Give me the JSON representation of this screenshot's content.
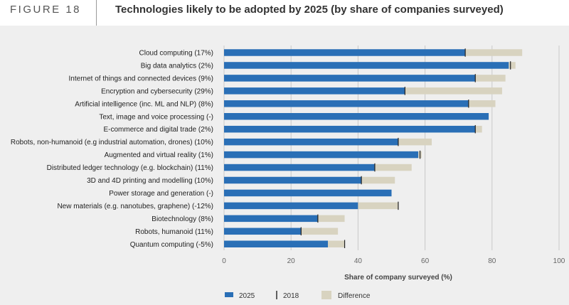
{
  "header": {
    "figure_label": "FIGURE 18",
    "title": "Technologies likely to be adopted by 2025 (by share of companies surveyed)"
  },
  "colors": {
    "bar_2025": "#2a6fb6",
    "marker_2018": "#222222",
    "difference": "#d8d3c0",
    "gridline": "#c9c9c9",
    "panel_bg": "#efefef"
  },
  "chart_data": {
    "type": "bar",
    "orientation": "horizontal",
    "xlabel": "Share of company surveyed (%)",
    "xlim": [
      0,
      100
    ],
    "xticks": [
      0,
      20,
      40,
      60,
      80,
      100
    ],
    "grid": true,
    "legend_position": "bottom",
    "legend": [
      {
        "key": "2025",
        "label": "2025",
        "style": "bar"
      },
      {
        "key": "2018",
        "label": "2018",
        "style": "marker"
      },
      {
        "key": "difference",
        "label": "Difference",
        "style": "box"
      }
    ],
    "categories": [
      "Cloud computing (17%)",
      "Big data analytics (2%)",
      "Internet of things and connected devices (9%)",
      "Encryption and cybersecurity (29%)",
      "Artificial intelligence (inc. ML and NLP) (8%)",
      "Text, image and voice processing (-)",
      "E-commerce and digital trade (2%)",
      "Robots, non-humanoid (e.g industrial automation, drones) (10%)",
      "Augmented and virtual reality (1%)",
      "Distributed ledger technology (e.g. blockchain) (11%)",
      "3D and 4D printing and modelling (10%)",
      "Power storage and generation (-)",
      "New materials (e.g. nanotubes, graphene) (-12%)",
      "Biotechnology (8%)",
      "Robots, humanoid (11%)",
      "Quantum computing (-5%)"
    ],
    "series": [
      {
        "key": "2025",
        "name": "2025",
        "values": [
          72,
          85,
          75,
          54,
          73,
          79,
          75,
          52,
          58,
          45,
          41,
          50,
          40,
          28,
          23,
          31
        ]
      },
      {
        "key": "2018",
        "name": "2018",
        "values": [
          72,
          85.5,
          75,
          54,
          73,
          null,
          75,
          52,
          58.5,
          45,
          41,
          null,
          52,
          28,
          23,
          36
        ]
      },
      {
        "key": "2025_with_difference",
        "name": "Difference",
        "values": [
          89,
          87,
          84,
          83,
          81,
          79,
          77,
          62,
          59,
          56,
          51,
          50,
          52,
          36,
          34,
          36
        ]
      }
    ]
  }
}
